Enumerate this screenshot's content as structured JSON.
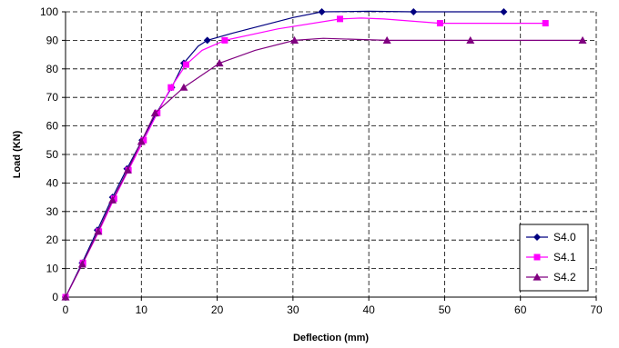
{
  "chart_data": {
    "type": "line",
    "title": "",
    "xlabel": "Deflection (mm)",
    "ylabel": "Load (KN)",
    "xlim": [
      0,
      70
    ],
    "ylim": [
      0,
      100
    ],
    "x_ticks": [
      "0",
      "10",
      "20",
      "30",
      "40",
      "50",
      "60",
      "70"
    ],
    "y_ticks": [
      "0",
      "10",
      "20",
      "30",
      "40",
      "50",
      "60",
      "70",
      "80",
      "90",
      "100"
    ],
    "grid": "dashed major gridlines",
    "legend_position": "bottom-right",
    "series": [
      {
        "name": "S4.0",
        "color": "#000080",
        "marker": "diamond",
        "points": [
          [
            0,
            0
          ],
          [
            2.2,
            12
          ],
          [
            4.2,
            23.5
          ],
          [
            6.2,
            35
          ],
          [
            8.1,
            45
          ],
          [
            10.1,
            55
          ],
          [
            12,
            64.5
          ],
          [
            14,
            73.5
          ],
          [
            15.6,
            82
          ],
          [
            17.5,
            88
          ],
          [
            18.7,
            90
          ],
          [
            22,
            92.5
          ],
          [
            30,
            98
          ],
          [
            33.8,
            100
          ],
          [
            40,
            100.2
          ],
          [
            45.9,
            100
          ],
          [
            51,
            100
          ],
          [
            57.8,
            100
          ]
        ],
        "marker_points": [
          [
            0,
            0
          ],
          [
            2.2,
            12
          ],
          [
            4.2,
            23.5
          ],
          [
            6.2,
            35
          ],
          [
            8.1,
            45
          ],
          [
            10.1,
            55
          ],
          [
            12,
            64.5
          ],
          [
            14,
            73.5
          ],
          [
            15.6,
            82
          ],
          [
            18.7,
            90
          ],
          [
            33.8,
            100
          ],
          [
            45.9,
            100
          ],
          [
            57.8,
            100
          ]
        ]
      },
      {
        "name": "S4.1",
        "color": "#ff00ff",
        "marker": "square",
        "points": [
          [
            0,
            0
          ],
          [
            2.3,
            12
          ],
          [
            4.4,
            23
          ],
          [
            6.4,
            34.5
          ],
          [
            8.3,
            44.5
          ],
          [
            10.3,
            55
          ],
          [
            12.1,
            64.5
          ],
          [
            13.9,
            73.5
          ],
          [
            15.9,
            81.5
          ],
          [
            18,
            86.5
          ],
          [
            21,
            90
          ],
          [
            28,
            94
          ],
          [
            36.2,
            97.5
          ],
          [
            39,
            97.8
          ],
          [
            42,
            97.5
          ],
          [
            49.4,
            96
          ],
          [
            55,
            96
          ],
          [
            63.3,
            96
          ]
        ],
        "marker_points": [
          [
            0,
            0
          ],
          [
            2.3,
            12
          ],
          [
            4.4,
            23
          ],
          [
            6.4,
            34.5
          ],
          [
            8.3,
            44.5
          ],
          [
            10.3,
            55
          ],
          [
            12.1,
            64.5
          ],
          [
            13.9,
            73.5
          ],
          [
            15.9,
            81.5
          ],
          [
            21,
            90
          ],
          [
            36.2,
            97.5
          ],
          [
            49.4,
            96
          ],
          [
            63.3,
            96
          ]
        ]
      },
      {
        "name": "S4.2",
        "color": "#800080",
        "marker": "triangle",
        "points": [
          [
            0,
            0
          ],
          [
            2.2,
            11.5
          ],
          [
            4.3,
            23
          ],
          [
            6.2,
            34
          ],
          [
            8.2,
            44.5
          ],
          [
            10,
            54.5
          ],
          [
            11.8,
            64.5
          ],
          [
            15.6,
            73.5
          ],
          [
            20.3,
            82
          ],
          [
            25,
            86.5
          ],
          [
            30.2,
            90
          ],
          [
            34,
            90.7
          ],
          [
            42.4,
            90
          ],
          [
            53.4,
            90
          ],
          [
            68.2,
            90
          ]
        ],
        "marker_points": [
          [
            0,
            0
          ],
          [
            2.2,
            11.5
          ],
          [
            4.3,
            23
          ],
          [
            6.2,
            34
          ],
          [
            8.2,
            44.5
          ],
          [
            10,
            54.5
          ],
          [
            11.8,
            64.5
          ],
          [
            15.6,
            73.5
          ],
          [
            20.3,
            82
          ],
          [
            30.2,
            90
          ],
          [
            42.4,
            90
          ],
          [
            53.4,
            90
          ],
          [
            68.2,
            90
          ]
        ]
      }
    ]
  }
}
